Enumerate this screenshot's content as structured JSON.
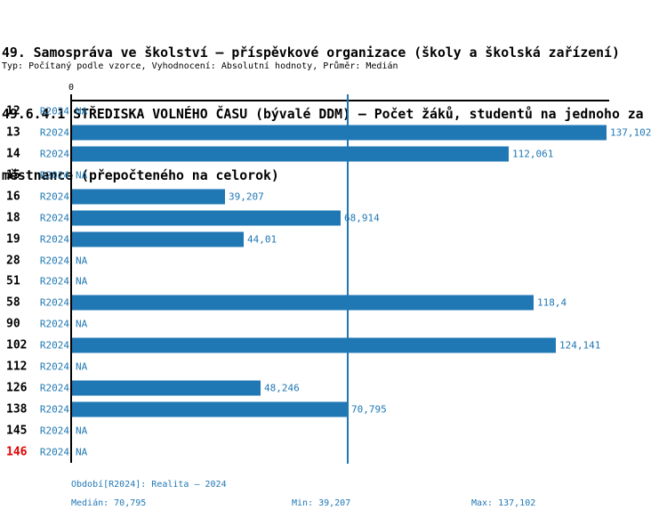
{
  "header": {
    "title_line1": "49. Samospráva ve školství – příspěvkové organizace (školy a školská zařízení)",
    "title_line2": "49.6.4.1 STŘEDISKA VOLNÉHO ČASU (bývalé DDM) – Počet žáků, studentů na jednoho za",
    "title_line3": "městnance (přepočteného na celorok)",
    "subtitle": "Typ: Počítaný podle vzorce, Vyhodnocení: Absolutní hodnoty, Průměr: Medián"
  },
  "colors": {
    "bar": "#1f77b4",
    "blue_text": "#1f77b4",
    "median_line": "#1f77b4",
    "axis": "#000000",
    "highlight_red": "#e00000"
  },
  "chart_data": {
    "type": "bar",
    "orientation": "horizontal",
    "title": "49.6.4.1 STŘEDISKA VOLNÉHO ČASU (bývalé DDM) – Počet žáků, studentů na jednoho zaměstnance (přepočteného na celorok)",
    "xlabel": "",
    "ylabel": "",
    "xlim": [
      0,
      138
    ],
    "x_tick_labels": [
      "0"
    ],
    "grid": false,
    "legend_position": "none",
    "series_label": "R2024",
    "median_value": 70.795,
    "rows": [
      {
        "id": "12",
        "series": "R2024",
        "value": null,
        "label": "NA"
      },
      {
        "id": "13",
        "series": "R2024",
        "value": 137.102,
        "label": "137,102"
      },
      {
        "id": "14",
        "series": "R2024",
        "value": 112.061,
        "label": "112,061"
      },
      {
        "id": "15",
        "series": "R2024",
        "value": null,
        "label": "NA"
      },
      {
        "id": "16",
        "series": "R2024",
        "value": 39.207,
        "label": "39,207"
      },
      {
        "id": "18",
        "series": "R2024",
        "value": 68.914,
        "label": "68,914"
      },
      {
        "id": "19",
        "series": "R2024",
        "value": 44.01,
        "label": "44,01"
      },
      {
        "id": "28",
        "series": "R2024",
        "value": null,
        "label": "NA"
      },
      {
        "id": "51",
        "series": "R2024",
        "value": null,
        "label": "NA"
      },
      {
        "id": "58",
        "series": "R2024",
        "value": 118.4,
        "label": "118,4"
      },
      {
        "id": "90",
        "series": "R2024",
        "value": null,
        "label": "NA"
      },
      {
        "id": "102",
        "series": "R2024",
        "value": 124.141,
        "label": "124,141"
      },
      {
        "id": "112",
        "series": "R2024",
        "value": null,
        "label": "NA"
      },
      {
        "id": "126",
        "series": "R2024",
        "value": 48.246,
        "label": "48,246"
      },
      {
        "id": "138",
        "series": "R2024",
        "value": 70.795,
        "label": "70,795"
      },
      {
        "id": "145",
        "series": "R2024",
        "value": null,
        "label": "NA"
      },
      {
        "id": "146",
        "series": "R2024",
        "value": null,
        "label": "NA",
        "highlight": true
      }
    ]
  },
  "footer": {
    "period": "Období[R2024]: Realita – 2024",
    "median": "Medián: 70,795",
    "min": "Min: 39,207",
    "max": "Max: 137,102"
  }
}
